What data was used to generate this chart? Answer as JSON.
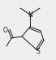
{
  "bg_color": "#efefef",
  "line_color": "#1a1a1a",
  "figsize": [
    0.69,
    0.74
  ],
  "dpi": 100,
  "xlim": [
    0,
    69
  ],
  "ylim": [
    0,
    74
  ]
}
